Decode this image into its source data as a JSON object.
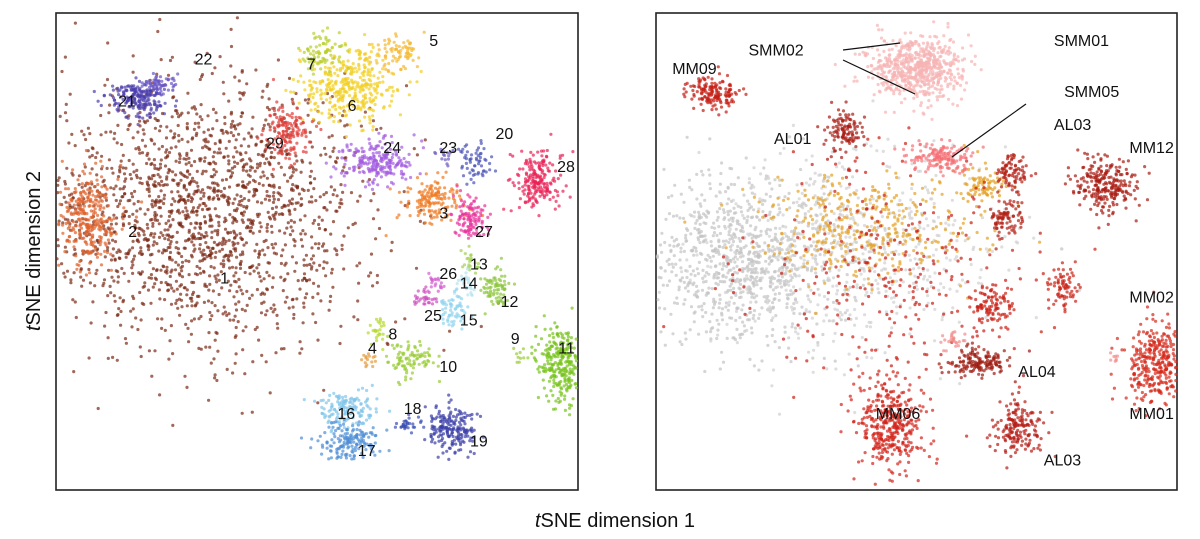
{
  "chart_data": [
    {
      "type": "scatter",
      "xlabel": "tSNE dimension 1",
      "ylabel": "tSNE dimension 2",
      "xlim": [
        0,
        100
      ],
      "ylim": [
        0,
        100
      ],
      "grid": false,
      "clusters": [
        {
          "label": "1",
          "color": "#7a2a15",
          "cx": 28,
          "cy": 58,
          "sx": 16,
          "sy": 14,
          "n": 1800
        },
        {
          "label": "2",
          "color": "#e0612a",
          "cx": 5,
          "cy": 57,
          "sx": 2.8,
          "sy": 5,
          "n": 300
        },
        {
          "label": "3",
          "color": "#f07a22",
          "cx": 73,
          "cy": 61,
          "sx": 3,
          "sy": 2.5,
          "n": 150
        },
        {
          "label": "4",
          "color": "#e69a3c",
          "cx": 60,
          "cy": 27,
          "sx": 1,
          "sy": 1,
          "n": 15
        },
        {
          "label": "5",
          "color": "#f5b830",
          "cx": 66,
          "cy": 92,
          "sx": 2.5,
          "sy": 2,
          "n": 80
        },
        {
          "label": "6",
          "color": "#f2cf1e",
          "cx": 56,
          "cy": 85,
          "sx": 5,
          "sy": 4,
          "n": 350
        },
        {
          "label": "7",
          "color": "#b9cf2c",
          "cx": 51,
          "cy": 93,
          "sx": 2,
          "sy": 2,
          "n": 80
        },
        {
          "label": "8",
          "color": "#b5d82e",
          "cx": 62,
          "cy": 33,
          "sx": 1,
          "sy": 1.2,
          "n": 25
        },
        {
          "label": "9",
          "color": "#9acd32",
          "cx": 90,
          "cy": 27,
          "sx": 0.8,
          "sy": 0.8,
          "n": 10
        },
        {
          "label": "10",
          "color": "#99cc33",
          "cx": 68,
          "cy": 27,
          "sx": 2.5,
          "sy": 1.6,
          "n": 90
        },
        {
          "label": "11",
          "color": "#78c31c",
          "cx": 98,
          "cy": 26,
          "sx": 2.5,
          "sy": 4,
          "n": 300
        },
        {
          "label": "12",
          "color": "#8dc63f",
          "cx": 85,
          "cy": 42,
          "sx": 1.6,
          "sy": 2.5,
          "n": 80
        },
        {
          "label": "13",
          "color": "#a3d152",
          "cx": 80,
          "cy": 48,
          "sx": 1,
          "sy": 1,
          "n": 20
        },
        {
          "label": "14",
          "color": "#b6e3f0",
          "cx": 79,
          "cy": 43,
          "sx": 1,
          "sy": 1.2,
          "n": 30
        },
        {
          "label": "15",
          "color": "#8fd3ef",
          "cx": 77,
          "cy": 37,
          "sx": 1.6,
          "sy": 2,
          "n": 60
        },
        {
          "label": "16",
          "color": "#80c5ea",
          "cx": 56,
          "cy": 16,
          "sx": 2.5,
          "sy": 2,
          "n": 140
        },
        {
          "label": "17",
          "color": "#4f8fd6",
          "cx": 56,
          "cy": 9,
          "sx": 3,
          "sy": 2,
          "n": 160
        },
        {
          "label": "18",
          "color": "#3b4fb5",
          "cx": 68,
          "cy": 13,
          "sx": 1.3,
          "sy": 1,
          "n": 30
        },
        {
          "label": "19",
          "color": "#3a3fa6",
          "cx": 76,
          "cy": 12,
          "sx": 2.5,
          "sy": 2.5,
          "n": 190
        },
        {
          "label": "20",
          "color": "#4a53b5",
          "cx": 81,
          "cy": 69,
          "sx": 1.5,
          "sy": 1.8,
          "n": 60
        },
        {
          "label": "21",
          "color": "#4b3dad",
          "cx": 15,
          "cy": 83,
          "sx": 3,
          "sy": 1.8,
          "n": 200
        },
        {
          "label": "22",
          "color": "#6a55c7",
          "cx": 19,
          "cy": 86,
          "sx": 1.5,
          "sy": 1.2,
          "n": 50
        },
        {
          "label": "23",
          "color": "#6d5cc0",
          "cx": 75,
          "cy": 70,
          "sx": 1,
          "sy": 1,
          "n": 15
        },
        {
          "label": "24",
          "color": "#a35be0",
          "cx": 62,
          "cy": 69,
          "sx": 3.5,
          "sy": 2.2,
          "n": 220
        },
        {
          "label": "25",
          "color": "#cf4ec0",
          "cx": 71,
          "cy": 40,
          "sx": 1.2,
          "sy": 1,
          "n": 30
        },
        {
          "label": "26",
          "color": "#d25cd0",
          "cx": 73,
          "cy": 43,
          "sx": 1,
          "sy": 1,
          "n": 20
        },
        {
          "label": "27",
          "color": "#e8309a",
          "cx": 80,
          "cy": 57,
          "sx": 1.8,
          "sy": 2.5,
          "n": 110
        },
        {
          "label": "28",
          "color": "#ea2155",
          "cx": 93,
          "cy": 65,
          "sx": 2.5,
          "sy": 3,
          "n": 200
        },
        {
          "label": "29",
          "color": "#e03a36",
          "cx": 44,
          "cy": 76,
          "sx": 2.3,
          "sy": 2.8,
          "n": 140
        }
      ],
      "labels": [
        {
          "text": "1",
          "x": 31,
          "y": 43
        },
        {
          "text": "2",
          "x": 13,
          "y": 53
        },
        {
          "text": "3",
          "x": 74,
          "y": 57
        },
        {
          "text": "4",
          "x": 60,
          "y": 28
        },
        {
          "text": "5",
          "x": 72,
          "y": 94
        },
        {
          "text": "6",
          "x": 56,
          "y": 80
        },
        {
          "text": "7",
          "x": 48,
          "y": 89
        },
        {
          "text": "8",
          "x": 64,
          "y": 31
        },
        {
          "text": "9",
          "x": 88,
          "y": 30
        },
        {
          "text": "10",
          "x": 74,
          "y": 24
        },
        {
          "text": "11",
          "x": 104,
          "y": 28
        },
        {
          "text": "12",
          "x": 86,
          "y": 38
        },
        {
          "text": "13",
          "x": 80,
          "y": 46
        },
        {
          "text": "14",
          "x": 78,
          "y": 42
        },
        {
          "text": "15",
          "x": 78,
          "y": 34
        },
        {
          "text": "16",
          "x": 54,
          "y": 14
        },
        {
          "text": "17",
          "x": 58,
          "y": 6
        },
        {
          "text": "18",
          "x": 67,
          "y": 15
        },
        {
          "text": "19",
          "x": 80,
          "y": 8
        },
        {
          "text": "20",
          "x": 85,
          "y": 74
        },
        {
          "text": "21",
          "x": 11,
          "y": 81
        },
        {
          "text": "22",
          "x": 26,
          "y": 90
        },
        {
          "text": "23",
          "x": 74,
          "y": 71
        },
        {
          "text": "24",
          "x": 63,
          "y": 71
        },
        {
          "text": "25",
          "x": 71,
          "y": 35
        },
        {
          "text": "26",
          "x": 74,
          "y": 44
        },
        {
          "text": "27",
          "x": 81,
          "y": 53
        },
        {
          "text": "28",
          "x": 98,
          "y": 67
        },
        {
          "text": "29",
          "x": 40,
          "y": 72
        }
      ]
    },
    {
      "type": "scatter",
      "xlabel": "tSNE dimension 1",
      "ylabel": "",
      "xlim": [
        0,
        100
      ],
      "ylim": [
        0,
        100
      ],
      "grid": false,
      "clusters": [
        {
          "label": "",
          "color": "#c3c3c3",
          "cx": 15,
          "cy": 48,
          "sx": 10,
          "sy": 9,
          "n": 900
        },
        {
          "label": "",
          "color": "#d0d0d0",
          "cx": 38,
          "cy": 50,
          "sx": 14,
          "sy": 11,
          "n": 600
        },
        {
          "label": "",
          "color": "#e4a126",
          "cx": 40,
          "cy": 55,
          "sx": 11,
          "sy": 6,
          "n": 380
        },
        {
          "label": "",
          "color": "#e6a020",
          "cx": 63,
          "cy": 64,
          "sx": 2,
          "sy": 1.5,
          "n": 70
        },
        {
          "label": "",
          "color": "#c91d12",
          "cx": 45,
          "cy": 45,
          "sx": 15,
          "sy": 12,
          "n": 300
        },
        {
          "label": "SMM01",
          "color": "#f7b4b4",
          "cx": 50,
          "cy": 89,
          "sx": 4.5,
          "sy": 3.5,
          "n": 650
        },
        {
          "label": "SMM05",
          "color": "#f56f75",
          "cx": 55,
          "cy": 70,
          "sx": 3,
          "sy": 1.6,
          "n": 160
        },
        {
          "label": "MM09",
          "color": "#c41d12",
          "cx": 10,
          "cy": 84,
          "sx": 2.6,
          "sy": 1.8,
          "n": 150
        },
        {
          "label": "AL01",
          "color": "#a81b12",
          "cx": 36,
          "cy": 76,
          "sx": 1.8,
          "sy": 2.3,
          "n": 110
        },
        {
          "label": "AL03",
          "color": "#b31c13",
          "cx": 69,
          "cy": 67,
          "sx": 1.6,
          "sy": 2,
          "n": 80
        },
        {
          "label": "",
          "color": "#b01f14",
          "cx": 68,
          "cy": 57,
          "sx": 1.8,
          "sy": 2.5,
          "n": 90
        },
        {
          "label": "MM12",
          "color": "#a81910",
          "cx": 87,
          "cy": 64,
          "sx": 3,
          "sy": 2.8,
          "n": 240
        },
        {
          "label": "MM02",
          "color": "#c91f13",
          "cx": 79,
          "cy": 42,
          "sx": 1.6,
          "sy": 2.5,
          "n": 70
        },
        {
          "label": "",
          "color": "#c92014",
          "cx": 65,
          "cy": 38,
          "sx": 2.2,
          "sy": 2.2,
          "n": 100
        },
        {
          "label": "",
          "color": "#f28a8a",
          "cx": 57,
          "cy": 31,
          "sx": 1.2,
          "sy": 1,
          "n": 25
        },
        {
          "label": "AL04",
          "color": "#9c1a10",
          "cx": 62,
          "cy": 26,
          "sx": 3,
          "sy": 1.6,
          "n": 140
        },
        {
          "label": "MM01",
          "color": "#d5281a",
          "cx": 97,
          "cy": 26,
          "sx": 3,
          "sy": 4.5,
          "n": 340
        },
        {
          "label": "MM06",
          "color": "#d1241a",
          "cx": 45,
          "cy": 13,
          "sx": 3.2,
          "sy": 5,
          "n": 380
        },
        {
          "label": "AL03",
          "color": "#b51d15",
          "cx": 70,
          "cy": 12,
          "sx": 2.5,
          "sy": 2.8,
          "n": 170
        },
        {
          "label": "",
          "color": "#f48d8d",
          "cx": 89,
          "cy": 27,
          "sx": 0.6,
          "sy": 0.6,
          "n": 8
        }
      ],
      "labels": [
        {
          "text": "SMM01",
          "x": 77,
          "y": 94
        },
        {
          "text": "SMM02",
          "x": 17,
          "y": 92
        },
        {
          "text": "MM09",
          "x": 2,
          "y": 88
        },
        {
          "text": "SMM05",
          "x": 79,
          "y": 83
        },
        {
          "text": "AL01",
          "x": 22,
          "y": 73
        },
        {
          "text": "AL03",
          "x": 77,
          "y": 76
        },
        {
          "text": "MM12",
          "x": 100,
          "y": 71
        },
        {
          "text": "MM02",
          "x": 95,
          "y": 39
        },
        {
          "text": "AL04",
          "x": 70,
          "y": 23
        },
        {
          "text": "MM01",
          "x": 100,
          "y": 14
        },
        {
          "text": "MM06",
          "x": 42,
          "y": 14
        },
        {
          "text": "AL03",
          "x": 75,
          "y": 4
        }
      ]
    }
  ]
}
